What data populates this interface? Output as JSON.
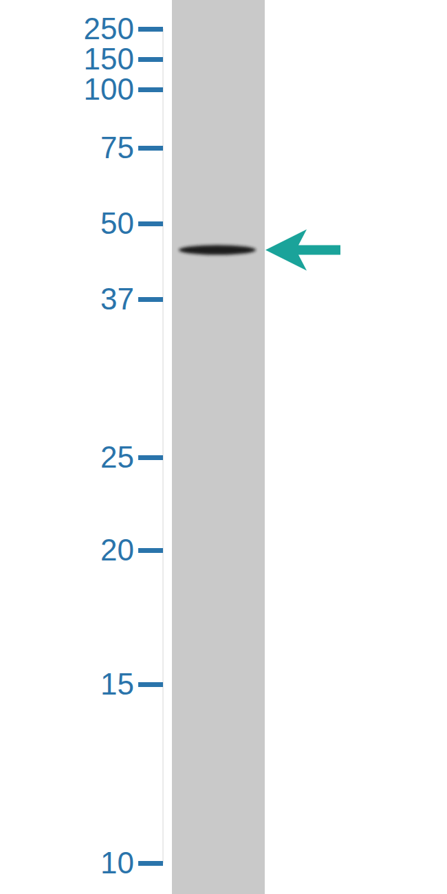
{
  "chart_data": {
    "type": "western_blot",
    "log": "y",
    "ylim": [
      10,
      250
    ],
    "yticks": [
      10,
      15,
      20,
      25,
      37,
      50,
      75,
      100,
      150,
      250
    ],
    "values": [
      45
    ],
    "color": "#1aa39a"
  }
}
